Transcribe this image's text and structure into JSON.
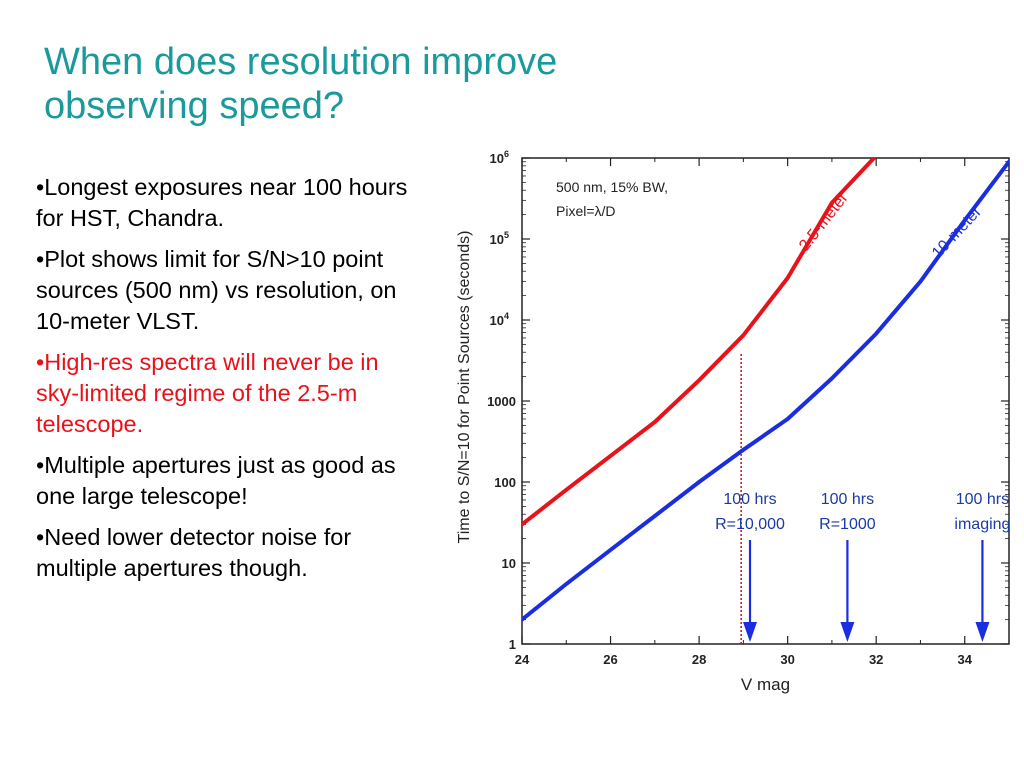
{
  "slide": {
    "title_line1": "When does resolution improve",
    "title_line2": "observing speed?",
    "bullets": [
      {
        "text": "•Longest exposures near 100 hours for HST, Chandra.",
        "color": "#000000"
      },
      {
        "text": "•Plot shows limit for S/N>10 point sources (500 nm) vs resolution, on 10-meter VLST.",
        "color": "#000000"
      },
      {
        "text": "•High-res spectra will never be in sky-limited regime of the 2.5-m telescope.",
        "color": "#e8121a"
      },
      {
        "text": "•Multiple apertures just as good as one large telescope!",
        "color": "#000000"
      },
      {
        "text": "•Need lower detector noise for multiple apertures though.",
        "color": "#000000"
      }
    ]
  },
  "chart_data": {
    "type": "line",
    "xlabel": "V mag",
    "ylabel": "Time to S/N=10 for Point Sources (seconds)",
    "xlim": [
      24,
      35
    ],
    "ylim": [
      1,
      1000000
    ],
    "yscale": "log",
    "xticks": [
      24,
      26,
      28,
      30,
      32,
      34
    ],
    "yticks": [
      {
        "value": 1,
        "label": "1"
      },
      {
        "value": 10,
        "label": "10"
      },
      {
        "value": 100,
        "label": "100"
      },
      {
        "value": 1000,
        "label": "1000"
      },
      {
        "value": 10000,
        "label": "10",
        "exp": "4"
      },
      {
        "value": 100000,
        "label": "10",
        "exp": "5"
      },
      {
        "value": 1000000,
        "label": "10",
        "exp": "6"
      }
    ],
    "annotation_box": {
      "line1": "500 nm, 15% BW,",
      "line2": "Pixel=λ/D"
    },
    "series": [
      {
        "name": "2.5-meter",
        "color": "#e8121a",
        "x": [
          24,
          25,
          26,
          27,
          28,
          29,
          30,
          31,
          31.95
        ],
        "y": [
          30,
          80,
          210,
          550,
          1800,
          6500,
          33000,
          280000,
          1000000
        ]
      },
      {
        "name": "10-meter",
        "color": "#1a2ee0",
        "x": [
          24,
          25,
          26,
          27,
          28,
          29,
          30,
          31,
          32,
          33,
          34,
          35
        ],
        "y": [
          2,
          5.5,
          14.5,
          38,
          100,
          250,
          600,
          1900,
          6800,
          30000,
          170000,
          900000
        ]
      }
    ],
    "vline": {
      "x": 28.95,
      "from": 1,
      "to": 4000,
      "color": "#c0141c"
    },
    "annotations": [
      {
        "line1": "100 hrs",
        "line2": "R=10,000",
        "x": 29.15,
        "color": "#1a3aa6"
      },
      {
        "line1": "100 hrs",
        "line2": "R=1000",
        "x": 31.35,
        "color": "#1a3aa6"
      },
      {
        "line1": "100 hrs",
        "line2": "imaging",
        "x": 34.4,
        "color": "#1a3aa6"
      }
    ],
    "grid": false,
    "legend": "none"
  }
}
